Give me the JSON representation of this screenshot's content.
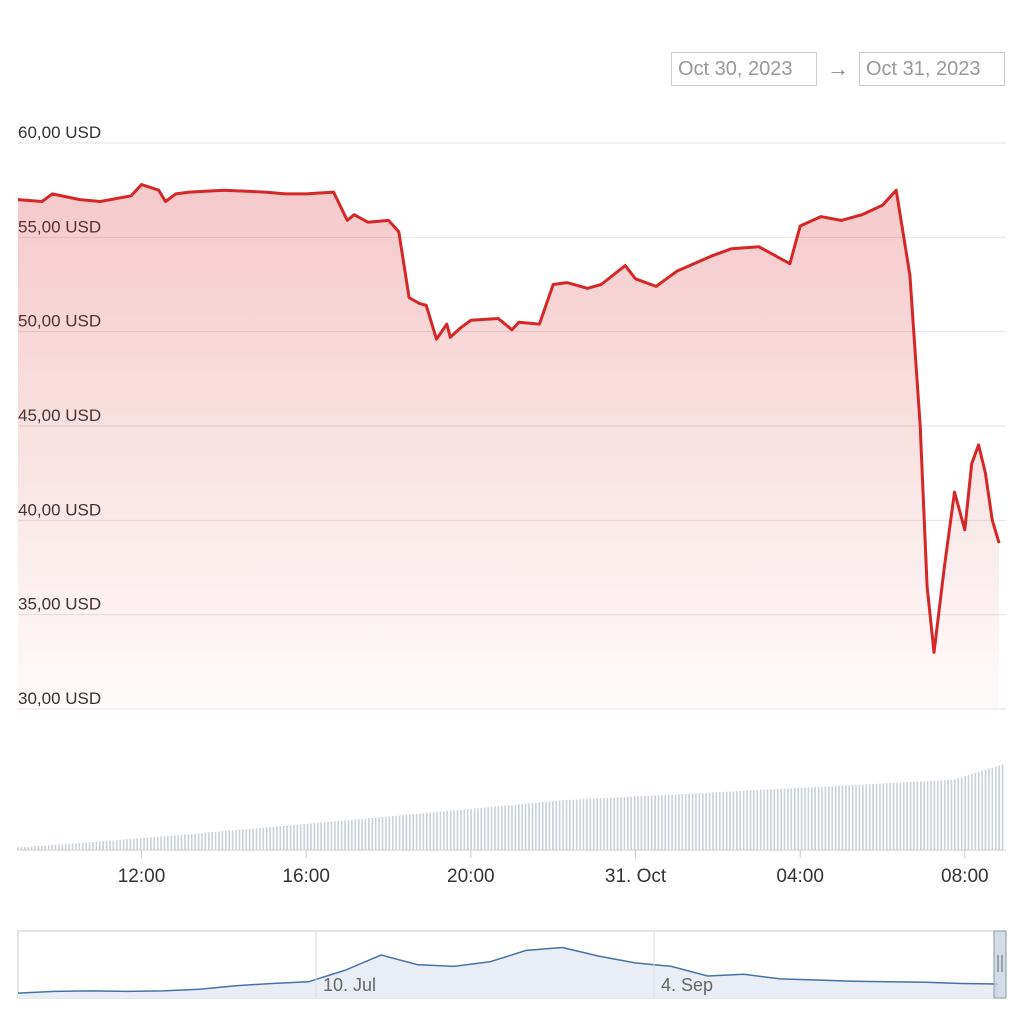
{
  "range_selector": {
    "from": "Oct 30, 2023",
    "arrow": "→",
    "to": "Oct 31, 2023"
  },
  "colors": {
    "price_line": "#d62728",
    "volume_bars": "#c9d0d9",
    "navigator_line": "#4572a7",
    "grid": "#e6e6e6"
  },
  "chart_data": {
    "type": "line",
    "title": "",
    "ylabel": "",
    "y_unit_suffix": " USD",
    "ylim": [
      30,
      60
    ],
    "yticks": [
      "30,00 USD",
      "35,00 USD",
      "40,00 USD",
      "45,00 USD",
      "50,00 USD",
      "55,00 USD",
      "60,00 USD"
    ],
    "ytick_values": [
      30,
      35,
      40,
      45,
      50,
      55,
      60
    ],
    "xlim": [
      "2023-10-30 09:00",
      "2023-10-31 09:00"
    ],
    "xticks": [
      "12:00",
      "16:00",
      "20:00",
      "31. Oct",
      "04:00",
      "08:00"
    ],
    "xtick_times": [
      "2023-10-30 12:00",
      "2023-10-30 16:00",
      "2023-10-30 20:00",
      "2023-10-31 00:00",
      "2023-10-31 04:00",
      "2023-10-31 08:00"
    ],
    "grid": true,
    "series": [
      {
        "x": [
          "2023-10-30 09:00",
          "2023-10-30 09:35",
          "2023-10-30 09:50",
          "2023-10-30 10:30",
          "2023-10-30 11:00",
          "2023-10-30 11:45",
          "2023-10-30 12:00",
          "2023-10-30 12:25",
          "2023-10-30 12:35",
          "2023-10-30 12:50",
          "2023-10-30 13:10",
          "2023-10-30 14:00",
          "2023-10-30 15:00",
          "2023-10-30 15:30",
          "2023-10-30 16:00",
          "2023-10-30 16:40",
          "2023-10-30 17:00",
          "2023-10-30 17:10",
          "2023-10-30 17:30",
          "2023-10-30 18:00",
          "2023-10-30 18:15",
          "2023-10-30 18:30",
          "2023-10-30 18:45",
          "2023-10-30 18:55",
          "2023-10-30 19:10",
          "2023-10-30 19:25",
          "2023-10-30 19:30",
          "2023-10-30 19:45",
          "2023-10-30 20:00",
          "2023-10-30 20:40",
          "2023-10-30 21:00",
          "2023-10-30 21:10",
          "2023-10-30 21:40",
          "2023-10-30 22:00",
          "2023-10-30 22:20",
          "2023-10-30 22:50",
          "2023-10-30 23:10",
          "2023-10-30 23:45",
          "2023-10-31 00:00",
          "2023-10-31 00:30",
          "2023-10-31 01:00",
          "2023-10-31 01:50",
          "2023-10-31 02:20",
          "2023-10-31 03:00",
          "2023-10-31 03:45",
          "2023-10-31 04:00",
          "2023-10-31 04:30",
          "2023-10-31 05:00",
          "2023-10-31 05:30",
          "2023-10-31 06:00",
          "2023-10-31 06:20",
          "2023-10-31 06:40",
          "2023-10-31 06:55",
          "2023-10-31 07:05",
          "2023-10-31 07:15",
          "2023-10-31 07:30",
          "2023-10-31 07:45",
          "2023-10-31 08:00",
          "2023-10-31 08:10",
          "2023-10-31 08:20",
          "2023-10-31 08:30",
          "2023-10-31 08:40",
          "2023-10-31 08:50"
        ],
        "y": [
          57.0,
          56.9,
          57.3,
          57.0,
          56.9,
          57.2,
          57.8,
          57.5,
          56.9,
          57.3,
          57.4,
          57.5,
          57.4,
          57.3,
          57.3,
          57.4,
          55.9,
          56.2,
          55.8,
          55.9,
          55.3,
          51.8,
          51.5,
          51.4,
          49.6,
          50.4,
          49.7,
          50.2,
          50.6,
          50.7,
          50.1,
          50.5,
          50.4,
          52.5,
          52.6,
          52.3,
          52.5,
          53.5,
          52.8,
          52.4,
          53.2,
          54.0,
          54.4,
          54.5,
          53.6,
          55.6,
          56.1,
          55.9,
          56.2,
          56.7,
          57.5,
          53.0,
          45.0,
          36.5,
          33.0,
          37.5,
          41.5,
          39.5,
          43.0,
          44.0,
          42.5,
          40.0,
          38.8
        ]
      }
    ],
    "volume": {
      "description_free": true,
      "x_start": "2023-10-30 09:00",
      "x_end": "2023-10-31 08:55",
      "start_value": 0.03,
      "mid_value": 0.55,
      "end_value": 0.95
    },
    "navigator": {
      "labels": [
        "10. Jul",
        "4. Sep"
      ],
      "values": [
        0.05,
        0.08,
        0.09,
        0.08,
        0.09,
        0.12,
        0.18,
        0.22,
        0.25,
        0.45,
        0.72,
        0.55,
        0.52,
        0.6,
        0.8,
        0.85,
        0.7,
        0.58,
        0.52,
        0.35,
        0.38,
        0.3,
        0.28,
        0.26,
        0.25,
        0.24,
        0.22,
        0.21
      ]
    }
  }
}
